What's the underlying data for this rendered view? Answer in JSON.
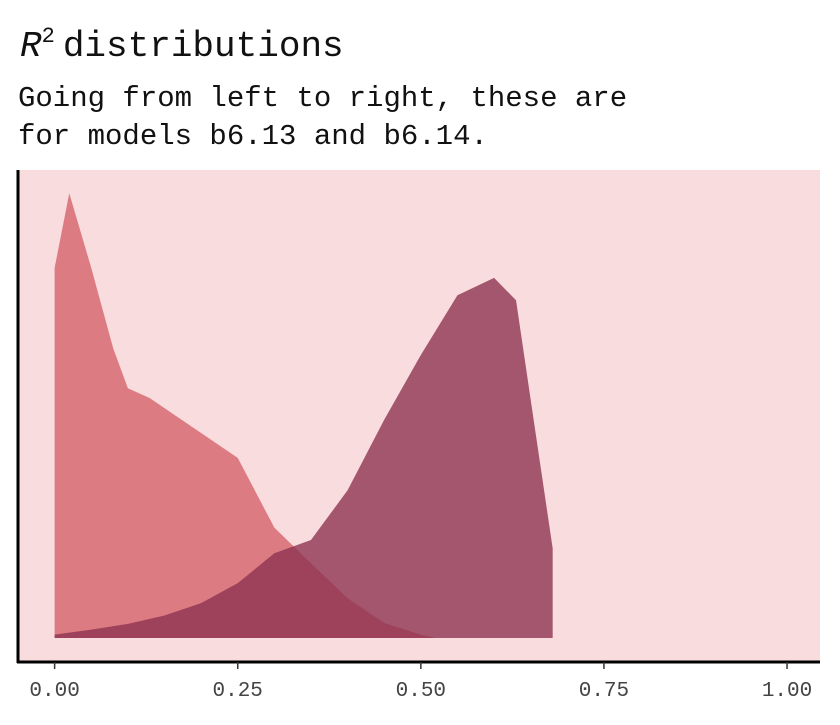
{
  "chart_data": {
    "type": "density",
    "title": {
      "symbol": "R",
      "superscript": "2",
      "text": "distributions"
    },
    "subtitle": [
      "Going from left to right, these are",
      "for models b6.13 and b6.14."
    ],
    "xlim": [
      -0.05,
      1.045
    ],
    "ylim": [
      -0.29,
      5.64
    ],
    "xticks": [
      {
        "value": 0,
        "label": "0.00"
      },
      {
        "value": 0.25,
        "label": "0.25"
      },
      {
        "value": 0.5,
        "label": "0.50"
      },
      {
        "value": 0.75,
        "label": "0.75"
      },
      {
        "value": 1,
        "label": "1.00"
      }
    ],
    "background": "#f9dcdd",
    "series": [
      {
        "color": "#d4636c",
        "x": [
          0,
          0.02,
          0.05,
          0.08,
          0.1,
          0.13,
          0.16,
          0.2,
          0.25,
          0.3,
          0.35,
          0.4,
          0.45,
          0.5,
          0.52
        ],
        "values": [
          4.46,
          5.36,
          4.46,
          3.49,
          3.01,
          2.89,
          2.71,
          2.47,
          2.17,
          1.33,
          0.9,
          0.48,
          0.18,
          0.04,
          0
        ]
      },
      {
        "color": "#8e3452",
        "x": [
          0,
          0.05,
          0.1,
          0.15,
          0.2,
          0.25,
          0.3,
          0.35,
          0.4,
          0.45,
          0.5,
          0.55,
          0.6,
          0.63,
          0.65,
          0.68
        ],
        "values": [
          0.04,
          0.1,
          0.17,
          0.27,
          0.42,
          0.66,
          1.02,
          1.18,
          1.78,
          2.63,
          3.41,
          4.13,
          4.34,
          4.07,
          2.87,
          1.08
        ]
      }
    ]
  }
}
